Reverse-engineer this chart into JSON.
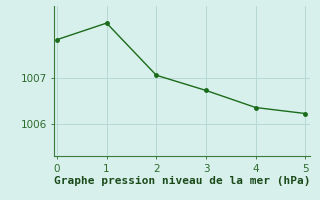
{
  "x": [
    0,
    1,
    2,
    3,
    4,
    5
  ],
  "y": [
    1007.82,
    1008.18,
    1007.05,
    1006.72,
    1006.35,
    1006.22
  ],
  "line_color": "#1a6b1a",
  "marker_color": "#1a6b1a",
  "bg_color": "#d8f0ec",
  "grid_color": "#b8d8d4",
  "axis_color": "#3a7a3a",
  "xlabel": "Graphe pression niveau de la mer (hPa)",
  "xlabel_color": "#1a4a1a",
  "xlim": [
    -0.05,
    5.1
  ],
  "ylim": [
    1005.3,
    1008.55
  ],
  "yticks": [
    1006,
    1007
  ],
  "xticks": [
    0,
    1,
    2,
    3,
    4,
    5
  ],
  "tick_color": "#2d6b2d",
  "font_size": 7.5,
  "xlabel_fontsize": 8,
  "line_width": 1.0,
  "marker_size": 2.5
}
